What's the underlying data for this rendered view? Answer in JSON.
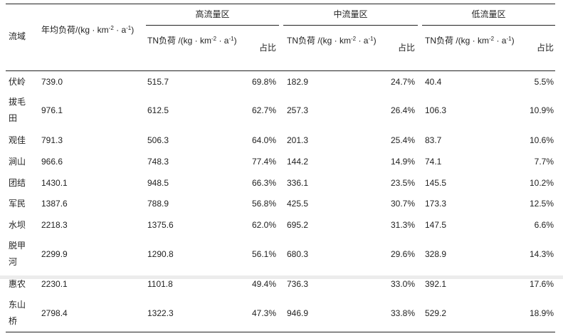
{
  "table": {
    "header": {
      "basin": "流域",
      "annual_load": "年均负荷/(kg · km",
      "annual_load_sup1": "-2",
      "annual_load_mid": " · a",
      "annual_load_sup2": "-1",
      "annual_load_end": ")",
      "groups": [
        "高流量区",
        "中流量区",
        "低流量区"
      ],
      "tn_load": "TN负荷 /(kg · km",
      "tn_sup1": "-2",
      "tn_mid": " · a",
      "tn_sup2": "-1",
      "tn_end": ")",
      "ratio": "占比"
    },
    "rows": [
      {
        "basin": "伏岭",
        "annual": "739.0",
        "high": "515.7",
        "high_pct": "69.8%",
        "mid": "182.9",
        "mid_pct": "24.7%",
        "low": "40.4",
        "low_pct": "5.5%"
      },
      {
        "basin": "拔毛田",
        "annual": "976.1",
        "high": "612.5",
        "high_pct": "62.7%",
        "mid": "257.3",
        "mid_pct": "26.4%",
        "low": "106.3",
        "low_pct": "10.9%"
      },
      {
        "basin": "观佳",
        "annual": "791.3",
        "high": "506.3",
        "high_pct": "64.0%",
        "mid": "201.3",
        "mid_pct": "25.4%",
        "low": "83.7",
        "low_pct": "10.6%"
      },
      {
        "basin": "涧山",
        "annual": "966.6",
        "high": "748.3",
        "high_pct": "77.4%",
        "mid": "144.2",
        "mid_pct": "14.9%",
        "low": "74.1",
        "low_pct": "7.7%"
      },
      {
        "basin": "团结",
        "annual": "1430.1",
        "high": "948.5",
        "high_pct": "66.3%",
        "mid": "336.1",
        "mid_pct": "23.5%",
        "low": "145.5",
        "low_pct": "10.2%"
      },
      {
        "basin": "军民",
        "annual": "1387.6",
        "high": "788.9",
        "high_pct": "56.8%",
        "mid": "425.5",
        "mid_pct": "30.7%",
        "low": "173.3",
        "low_pct": "12.5%"
      },
      {
        "basin": "水坝",
        "annual": "2218.3",
        "high": "1375.6",
        "high_pct": "62.0%",
        "mid": "695.2",
        "mid_pct": "31.3%",
        "low": "147.5",
        "low_pct": "6.6%"
      },
      {
        "basin": "脱甲河",
        "annual": "2299.9",
        "high": "1290.8",
        "high_pct": "56.1%",
        "mid": "680.3",
        "mid_pct": "29.6%",
        "low": "328.9",
        "low_pct": "14.3%"
      },
      {
        "basin": "惠农",
        "annual": "2230.1",
        "high": "1101.8",
        "high_pct": "49.4%",
        "mid": "736.3",
        "mid_pct": "33.0%",
        "low": "392.1",
        "low_pct": "17.6%"
      },
      {
        "basin": "东山桥",
        "annual": "2798.4",
        "high": "1322.3",
        "high_pct": "47.3%",
        "mid": "946.9",
        "mid_pct": "33.8%",
        "low": "529.2",
        "low_pct": "18.9%"
      }
    ]
  }
}
